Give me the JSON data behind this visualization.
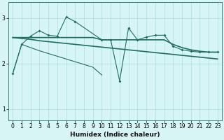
{
  "x": [
    0,
    1,
    2,
    3,
    4,
    5,
    6,
    7,
    8,
    9,
    10,
    11,
    12,
    13,
    14,
    15,
    16,
    17,
    18,
    19,
    20,
    21,
    22,
    23
  ],
  "line_spiky": [
    1.78,
    2.42,
    2.6,
    2.72,
    2.62,
    2.6,
    3.02,
    2.92,
    null,
    null,
    2.52,
    2.52,
    1.62,
    2.78,
    2.52,
    2.58,
    2.62,
    2.62,
    2.38,
    2.3,
    2.27,
    2.25,
    2.25,
    2.25
  ],
  "line_flat_upper": [
    2.57,
    2.57,
    2.57,
    2.57,
    2.57,
    2.57,
    2.57,
    2.57,
    2.57,
    2.57,
    2.52,
    2.52,
    2.52,
    2.52,
    2.52,
    2.52,
    2.52,
    2.52,
    2.42,
    2.35,
    2.3,
    2.27,
    2.25,
    2.25
  ],
  "line_trend": [
    2.57,
    2.55,
    2.53,
    2.5,
    2.48,
    2.46,
    2.44,
    2.42,
    2.4,
    2.38,
    2.36,
    2.34,
    2.32,
    2.3,
    2.28,
    2.26,
    2.24,
    2.22,
    2.2,
    2.18,
    2.16,
    2.14,
    2.12,
    2.1
  ],
  "line_diag": [
    1.78,
    2.42,
    2.35,
    2.28,
    2.22,
    2.16,
    2.1,
    2.04,
    1.98,
    1.92,
    1.75,
    null,
    null,
    null,
    null,
    null,
    null,
    null,
    null,
    null,
    null,
    null,
    null,
    null
  ],
  "color": "#1e6e60",
  "background": "#d8f5f5",
  "grid_color": "#aadede",
  "xlabel": "Humidex (Indice chaleur)",
  "yticks": [
    1,
    2,
    3
  ],
  "xticks": [
    0,
    1,
    2,
    3,
    4,
    5,
    6,
    7,
    8,
    9,
    10,
    11,
    12,
    13,
    14,
    15,
    16,
    17,
    18,
    19,
    20,
    21,
    22,
    23
  ],
  "xlim": [
    -0.5,
    23.5
  ],
  "ylim": [
    0.75,
    3.35
  ]
}
